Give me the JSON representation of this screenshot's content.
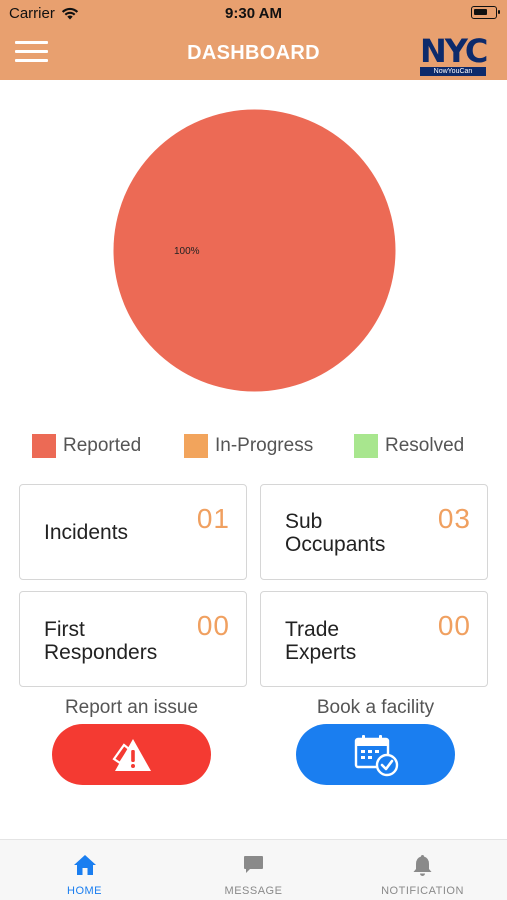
{
  "status_bar": {
    "carrier": "Carrier",
    "time": "9:30 AM"
  },
  "header": {
    "title": "DASHBOARD",
    "logo_text": "NYC",
    "logo_tagline": "NowYouCan",
    "background": "#e8a06f"
  },
  "chart_data": {
    "type": "pie",
    "categories": [
      "Reported",
      "In-Progress",
      "Resolved"
    ],
    "values": [
      100,
      0,
      0
    ],
    "slice_label": "100%",
    "colors": [
      "#ec6a55",
      "#f2a45c",
      "#a8e68e"
    ],
    "legend_position": "bottom"
  },
  "legend": {
    "items": [
      {
        "label": "Reported",
        "color": "#ec6a55"
      },
      {
        "label": "In-Progress",
        "color": "#f2a45c"
      },
      {
        "label": "Resolved",
        "color": "#a8e68e"
      }
    ]
  },
  "cards": [
    {
      "label_line1": "Incidents",
      "label_line2": "",
      "count": "01"
    },
    {
      "label_line1": "Sub",
      "label_line2": "Occupants",
      "count": "03"
    },
    {
      "label_line1": "First",
      "label_line2": "Responders",
      "count": "00"
    },
    {
      "label_line1": "Trade",
      "label_line2": "Experts",
      "count": "00"
    }
  ],
  "actions": {
    "report": {
      "label": "Report an issue",
      "color": "#f43a32",
      "icon": "alert-warning-icon"
    },
    "book": {
      "label": "Book a facility",
      "color": "#1a7ef0",
      "icon": "calendar-check-icon"
    }
  },
  "tabs": [
    {
      "label": "HOME",
      "icon": "home-icon",
      "active": true,
      "color": "#1a7ef0"
    },
    {
      "label": "MESSAGE",
      "icon": "message-icon",
      "active": false,
      "color": "#8a8a8a"
    },
    {
      "label": "NOTIFICATION",
      "icon": "bell-icon",
      "active": false,
      "color": "#8a8a8a"
    }
  ]
}
